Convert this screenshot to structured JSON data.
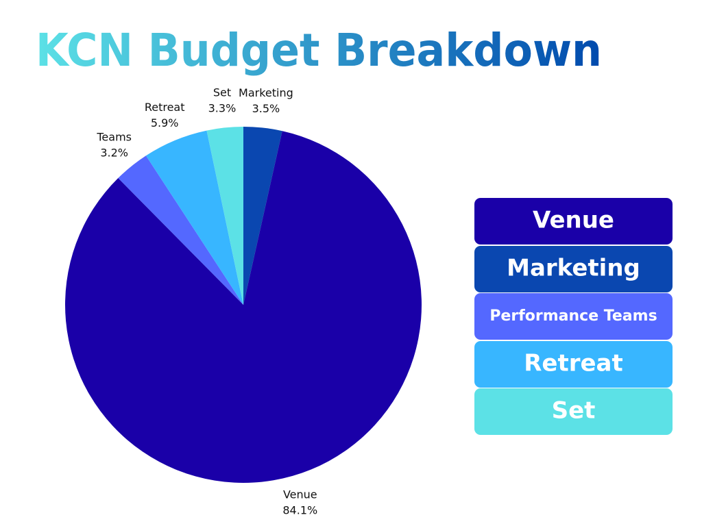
{
  "chart_data": {
    "type": "pie",
    "title": "KCN Budget Breakdown",
    "categories": [
      "Marketing",
      "Venue",
      "Teams",
      "Retreat",
      "Set"
    ],
    "values": [
      3.5,
      84.1,
      3.2,
      5.9,
      3.3
    ],
    "value_labels": [
      "3.5%",
      "84.1%",
      "3.2%",
      "5.9%",
      "3.3%"
    ],
    "colors": [
      "#0a47b0",
      "#1a00a8",
      "#5468ff",
      "#38b6ff",
      "#5ce1e6"
    ],
    "legend": [
      {
        "name": "Venue",
        "color": "#1a00a8"
      },
      {
        "name": "Marketing",
        "color": "#0a47b0"
      },
      {
        "name": "Performance Teams",
        "color": "#5468ff"
      },
      {
        "name": "Retreat",
        "color": "#38b6ff"
      },
      {
        "name": "Set",
        "color": "#5ce1e6"
      }
    ]
  }
}
